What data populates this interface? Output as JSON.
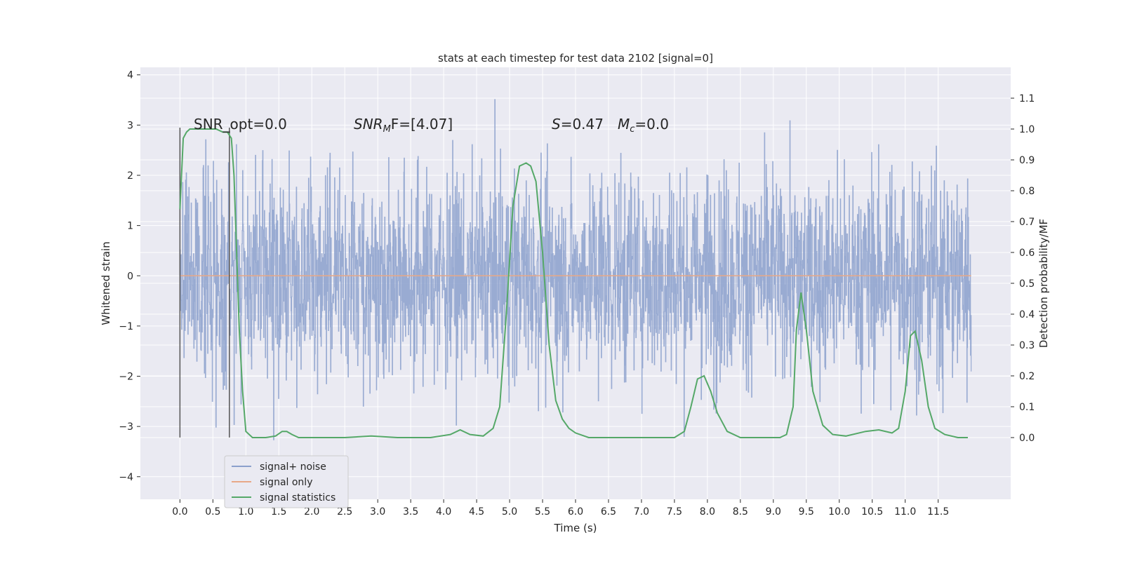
{
  "chart_data": {
    "type": "line",
    "title": "stats at each timestep for test data 2102 [signal=0]",
    "xlabel": "Time (s)",
    "ylabel": "Whitened strain",
    "y2label": "Detection probability/MF",
    "xlim": [
      -0.6,
      12.6
    ],
    "ylim": [
      -4.45,
      4.15
    ],
    "y2lim": [
      -0.2,
      1.2
    ],
    "x_ticks": [
      "0.0",
      "0.5",
      "1.0",
      "1.5",
      "2.0",
      "2.5",
      "3.0",
      "3.5",
      "4.0",
      "4.5",
      "5.0",
      "5.5",
      "6.0",
      "6.5",
      "7.0",
      "7.5",
      "8.0",
      "8.5",
      "9.0",
      "9.5",
      "10.0",
      "10.5",
      "11.0",
      "11.5"
    ],
    "y_ticks": [
      "4",
      "3",
      "2",
      "1",
      "0",
      "−1",
      "−2",
      "−3",
      "−4"
    ],
    "y2_ticks": [
      "1.1",
      "1.0",
      "0.9",
      "0.8",
      "0.7",
      "0.6",
      "0.5",
      "0.4",
      "0.3",
      "0.2",
      "0.1",
      "0.0"
    ],
    "grid": true,
    "legend": {
      "placement": "lower-left",
      "entries": [
        {
          "label": "signal+ noise",
          "color": "#8ba0cc"
        },
        {
          "label": "signal only",
          "color": "#e8a887"
        },
        {
          "label": "signal statistics",
          "color": "#55a868"
        }
      ]
    },
    "annotations": {
      "snr_opt": "SNR_opt=0.0",
      "snr_mf_main": "SNR",
      "snr_mf_sub": "M",
      "snr_mf_rest": "F=[4.07]",
      "s_main": "S",
      "s_rest": "=0.47",
      "mc_main": "M",
      "mc_sub": "c",
      "mc_rest": "=0.0"
    },
    "window_lines_x": [
      0.0,
      0.75
    ],
    "noise_series": {
      "name": "signal+ noise",
      "x_range": [
        0.0,
        12.0
      ],
      "envelope_max_abs": 3.8,
      "color": "#8ba0cc"
    },
    "signal_only": {
      "name": "signal only",
      "value": 0.0,
      "x_range": [
        0.0,
        12.0
      ],
      "color": "#e8a887"
    },
    "series": [
      {
        "name": "signal statistics",
        "color": "#55a868",
        "x": [
          0.0,
          0.05,
          0.1,
          0.15,
          0.25,
          0.4,
          0.55,
          0.65,
          0.72,
          0.78,
          0.82,
          0.86,
          0.9,
          0.95,
          1.0,
          1.1,
          1.3,
          1.45,
          1.55,
          1.62,
          1.7,
          1.8,
          2.0,
          2.5,
          2.9,
          3.3,
          3.8,
          4.1,
          4.25,
          4.4,
          4.6,
          4.75,
          4.85,
          4.95,
          5.05,
          5.15,
          5.25,
          5.32,
          5.4,
          5.5,
          5.6,
          5.7,
          5.8,
          5.9,
          6.0,
          6.2,
          6.5,
          7.0,
          7.5,
          7.65,
          7.75,
          7.85,
          7.95,
          8.05,
          8.15,
          8.3,
          8.5,
          8.8,
          9.1,
          9.2,
          9.3,
          9.35,
          9.42,
          9.5,
          9.6,
          9.75,
          9.9,
          10.1,
          10.4,
          10.6,
          10.8,
          10.9,
          11.0,
          11.08,
          11.15,
          11.25,
          11.35,
          11.45,
          11.6,
          11.8,
          11.95
        ],
        "y": [
          0.74,
          0.97,
          0.99,
          1.0,
          1.0,
          1.0,
          1.0,
          0.99,
          0.99,
          0.97,
          0.85,
          0.6,
          0.35,
          0.15,
          0.02,
          0.0,
          0.0,
          0.005,
          0.02,
          0.02,
          0.01,
          0.0,
          0.0,
          0.0,
          0.005,
          0.0,
          0.0,
          0.01,
          0.025,
          0.01,
          0.005,
          0.03,
          0.1,
          0.4,
          0.75,
          0.88,
          0.89,
          0.88,
          0.83,
          0.6,
          0.3,
          0.12,
          0.06,
          0.03,
          0.015,
          0.0,
          0.0,
          0.0,
          0.0,
          0.02,
          0.1,
          0.19,
          0.2,
          0.15,
          0.08,
          0.02,
          0.0,
          0.0,
          0.0,
          0.01,
          0.1,
          0.35,
          0.47,
          0.35,
          0.15,
          0.04,
          0.01,
          0.005,
          0.02,
          0.025,
          0.015,
          0.03,
          0.15,
          0.33,
          0.345,
          0.25,
          0.1,
          0.03,
          0.01,
          0.0,
          0.0
        ]
      }
    ]
  }
}
